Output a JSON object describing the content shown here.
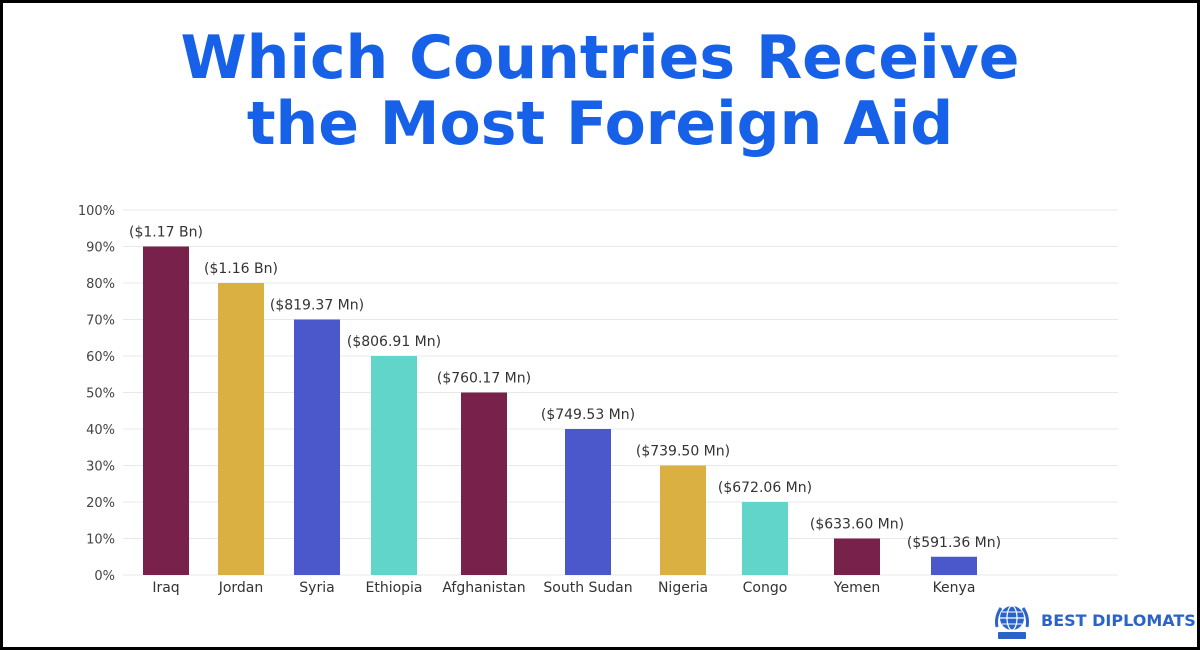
{
  "title_line1": "Which Countries Receive",
  "title_line2": "the Most Foreign Aid",
  "logo_text": "BEST DIPLOMATS",
  "colors": {
    "title": "#1761e8",
    "maroon": "#78224b",
    "gold": "#dbb043",
    "blue": "#4a58cc",
    "teal": "#62d5cb",
    "axis_text": "#444444",
    "grid": "#e8e8e8",
    "logo": "#2b63c9"
  },
  "chart_data": {
    "type": "bar",
    "categories": [
      "Iraq",
      "Jordan",
      "Syria",
      "Ethiopia",
      "Afghanistan",
      "South Sudan",
      "Nigeria",
      "Congo",
      "Yemen",
      "Kenya"
    ],
    "values": [
      90,
      80,
      70,
      60,
      50,
      40,
      30,
      20,
      10,
      5
    ],
    "labels": [
      "($1.17 Bn)",
      "($1.16 Bn)",
      "($819.37 Mn)",
      "($806.91 Mn)",
      "($760.17 Mn)",
      "($749.53 Mn)",
      "($739.50 Mn)",
      "($672.06 Mn)",
      "($633.60 Mn)",
      "($591.36 Mn)"
    ],
    "bar_colors": [
      "#78224b",
      "#dbb043",
      "#4a58cc",
      "#62d5cb",
      "#78224b",
      "#4a58cc",
      "#dbb043",
      "#62d5cb",
      "#78224b",
      "#4a58cc"
    ],
    "yticks": [
      "0%",
      "10%",
      "20%",
      "30%",
      "40%",
      "50%",
      "60%",
      "70%",
      "80%",
      "90%",
      "100%"
    ],
    "ylim": [
      0,
      100
    ],
    "grid": true,
    "legend": "none"
  }
}
